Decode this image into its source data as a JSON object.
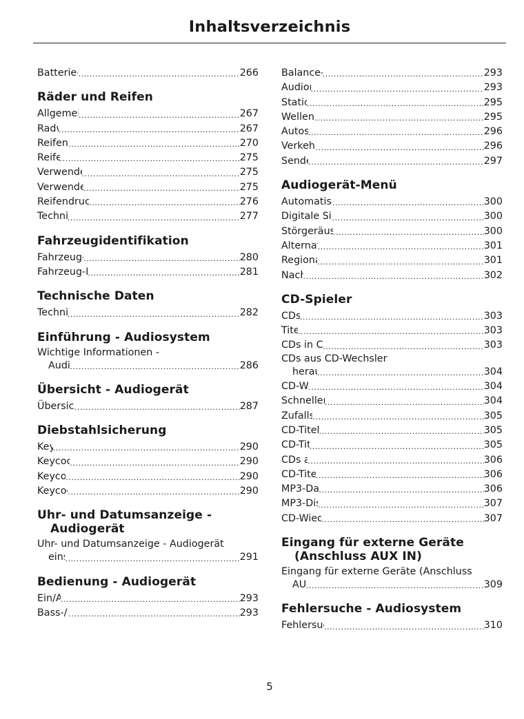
{
  "header": {
    "title": "Inhaltsverzeichnis"
  },
  "left": {
    "top_entry": {
      "label": "Batterie-Anschlusspunkte",
      "page": "266"
    },
    "raeder": {
      "title": "Räder und Reifen",
      "entries": [
        {
          "label": "Allgemeine Informationen",
          "page": "267"
        },
        {
          "label": "Radwechsel",
          "page": "267"
        },
        {
          "label": "Reifenreparaturkit",
          "page": "270"
        },
        {
          "label": "Reifenpflege",
          "page": "275"
        },
        {
          "label": "Verwenden von Winterreifen",
          "page": "275"
        },
        {
          "label": "Verwenden von Schneeketten",
          "page": "275"
        },
        {
          "label": "Reifendrucküberwachungs-System",
          "page": "276"
        },
        {
          "label": "Technische Daten",
          "page": "277"
        }
      ]
    },
    "fahrzeug": {
      "title": "Fahrzeugidentifikation",
      "entries": [
        {
          "label": "Fahrzeug-Identifikationsschild",
          "page": "280"
        },
        {
          "label": "Fahrzeug-Identifikations-Nummer",
          "page": "281"
        }
      ]
    },
    "technische": {
      "title": "Technische Daten",
      "entries": [
        {
          "label": "Technische Daten",
          "page": "282"
        }
      ]
    },
    "einfuehrung": {
      "title": "Einführung - Audiosystem",
      "entry": {
        "line1": "Wichtige Informationen -",
        "line2": "Audiosystem",
        "page": "286"
      }
    },
    "uebersicht": {
      "title": "Übersicht - Audiogerät",
      "entries": [
        {
          "label": "Übersicht - Audiogerät",
          "page": "287"
        }
      ]
    },
    "diebstahl": {
      "title": "Diebstahlsicherung",
      "entries": [
        {
          "label": "Keycode",
          "page": "290"
        },
        {
          "label": "Keycode vergessen",
          "page": "290"
        },
        {
          "label": "Keycodeeingabe",
          "page": "290"
        },
        {
          "label": "Keycode inkorrekt",
          "page": "290"
        }
      ]
    },
    "uhr": {
      "title_line1": "Uhr- und Datumsanzeige -",
      "title_line2": "Audiogerät",
      "entry": {
        "line1": "Uhr- und Datumsanzeige - Audiogerät",
        "line2": "einstellen",
        "page": "291"
      }
    },
    "bedienung": {
      "title": "Bedienung - Audiogerät",
      "entries": [
        {
          "label": "Ein/Aus-Taste",
          "page": "293"
        },
        {
          "label": "Bass-/Höhenregler",
          "page": "293"
        }
      ]
    }
  },
  "right": {
    "top_entries": [
      {
        "label": "Balance-/Überblendregler",
        "page": "293"
      },
      {
        "label": "Audiomenü-Taste",
        "page": "293"
      },
      {
        "label": "Stationstasten",
        "page": "295"
      },
      {
        "label": "Wellenbereich-Taste",
        "page": "295"
      },
      {
        "label": "Autostore-Taste",
        "page": "296"
      },
      {
        "label": "Verkehrsdurchsagen",
        "page": "296"
      },
      {
        "label": "Sendersuchlauf",
        "page": "297"
      }
    ],
    "menu": {
      "title": "Audiogerät-Menü",
      "entries": [
        {
          "label": "Automatische Lautstärkeregelung",
          "page": "300"
        },
        {
          "label": "Digitale Signalverarbeitung (DSP)",
          "page": "300"
        },
        {
          "label": "Störgeräuschunterdrückung (CLIP)",
          "page": "300"
        },
        {
          "label": "Alternativ-Frequenzen",
          "page": "301"
        },
        {
          "label": "Regionalmodus (REG)",
          "page": "301"
        },
        {
          "label": "Nachrichten",
          "page": "302"
        }
      ]
    },
    "cd": {
      "title": "CD-Spieler",
      "entries_a": [
        {
          "label": "CDs laden",
          "page": "303"
        },
        {
          "label": "Titelwahl",
          "page": "303"
        },
        {
          "label": "CDs in CD-Wechsler laden",
          "page": "303"
        }
      ],
      "wrap_entry": {
        "line1": "CDs aus CD-Wechsler",
        "line2": "herausnehmen",
        "page": "304"
      },
      "entries_b": [
        {
          "label": "CD-Wiedergabe",
          "page": "304"
        },
        {
          "label": "Schneller Vor- und Rücklauf",
          "page": "304"
        },
        {
          "label": "Zufallswiedergabe",
          "page": "305"
        },
        {
          "label": "CD-Titelkomprimierung",
          "page": "305"
        },
        {
          "label": "CD-Titelsuchlauf",
          "page": "305"
        },
        {
          "label": "CDs auswerfen",
          "page": "306"
        },
        {
          "label": "CD-Titel wiederholen",
          "page": "306"
        },
        {
          "label": "MP3-Datei-Wiedergabe",
          "page": "306"
        },
        {
          "label": "MP3-Display-Optionen",
          "page": "307"
        },
        {
          "label": "CD-Wiedergabe beenden",
          "page": "307"
        }
      ]
    },
    "aux": {
      "title_line1": "Eingang für externe Geräte",
      "title_line2": "(Anschluss AUX IN)",
      "entry": {
        "line1": "Eingang für externe Geräte (Anschluss",
        "line2": "AUX IN)",
        "page": "309"
      }
    },
    "fehler": {
      "title": "Fehlersuche - Audiosystem",
      "entries": [
        {
          "label": "Fehlersuche - Audiosystem",
          "page": "310"
        }
      ]
    }
  },
  "footer": {
    "page_number": "5"
  }
}
